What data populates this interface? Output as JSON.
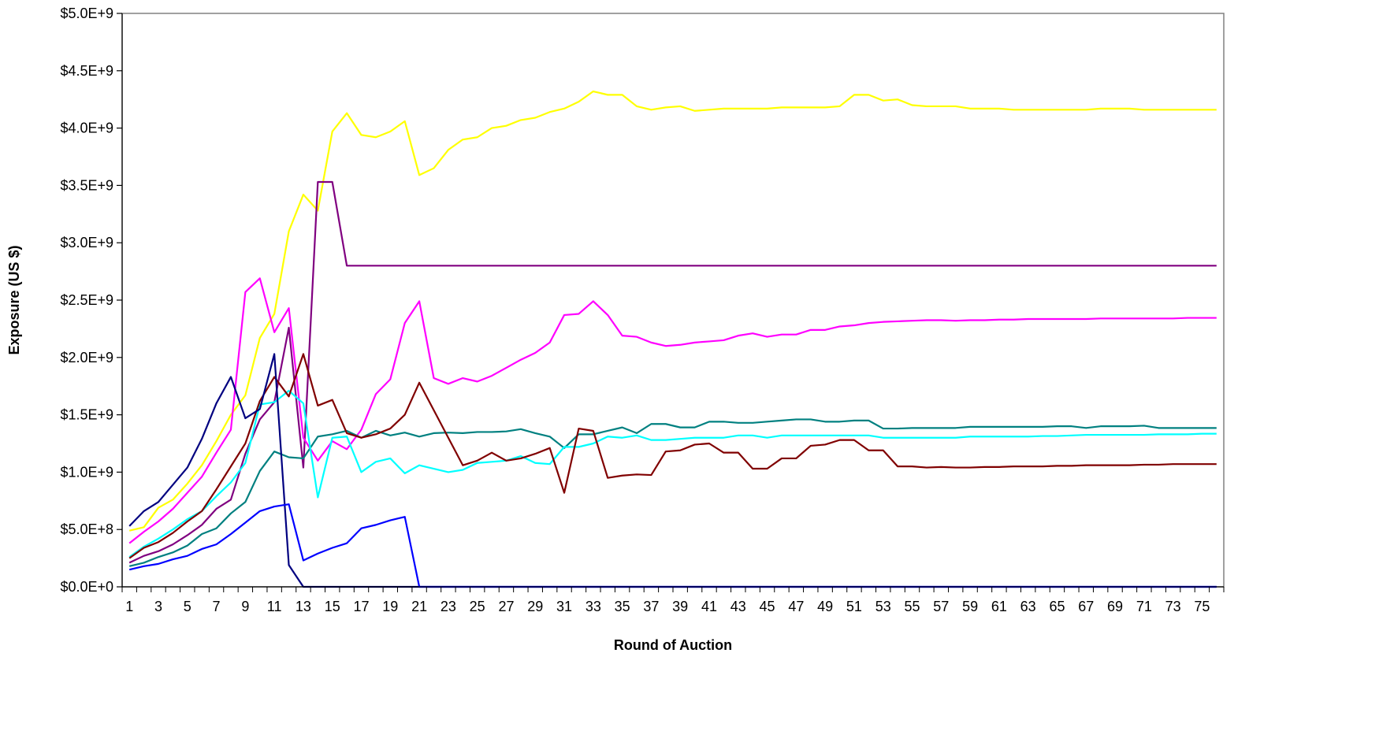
{
  "chart_data": {
    "type": "line",
    "title": "",
    "xlabel": "Round of Auction",
    "ylabel": "Exposure (US $)",
    "x": [
      1,
      2,
      3,
      4,
      5,
      6,
      7,
      8,
      9,
      10,
      11,
      12,
      13,
      14,
      15,
      16,
      17,
      18,
      19,
      20,
      21,
      22,
      23,
      24,
      25,
      26,
      27,
      28,
      29,
      30,
      31,
      32,
      33,
      34,
      35,
      36,
      37,
      38,
      39,
      40,
      41,
      42,
      43,
      44,
      45,
      46,
      47,
      48,
      49,
      50,
      51,
      52,
      53,
      54,
      55,
      56,
      57,
      58,
      59,
      60,
      61,
      62,
      63,
      64,
      65,
      66,
      67,
      68,
      69,
      70,
      71,
      72,
      73,
      74,
      75,
      76
    ],
    "x_tick_labels": [
      "1",
      "3",
      "5",
      "7",
      "9",
      "11",
      "13",
      "15",
      "17",
      "19",
      "21",
      "23",
      "25",
      "27",
      "29",
      "31",
      "33",
      "35",
      "37",
      "39",
      "41",
      "43",
      "45",
      "47",
      "49",
      "51",
      "53",
      "55",
      "57",
      "59",
      "61",
      "63",
      "65",
      "67",
      "69",
      "71",
      "73",
      "75"
    ],
    "ylim": [
      0,
      5000000000
    ],
    "y_tick_values": [
      0,
      500000000,
      1000000000,
      1500000000,
      2000000000,
      2500000000,
      3000000000,
      3500000000,
      4000000000,
      4500000000,
      5000000000
    ],
    "y_tick_labels": [
      "$0.0E+0",
      "$5.0E+8",
      "$1.0E+9",
      "$1.5E+9",
      "$2.0E+9",
      "$2.5E+9",
      "$3.0E+9",
      "$3.5E+9",
      "$4.0E+9",
      "$4.5E+9",
      "$5.0E+9"
    ],
    "grid": false,
    "legend": "none",
    "series": [
      {
        "color": "#ffff00",
        "values": [
          490000000.0,
          520000000.0,
          690000000.0,
          760000000.0,
          900000000.0,
          1060000000.0,
          1270000000.0,
          1500000000.0,
          1670000000.0,
          2170000000.0,
          2380000000.0,
          3100000000.0,
          3420000000.0,
          3280000000.0,
          3970000000.0,
          4130000000.0,
          3940000000.0,
          3920000000.0,
          3970000000.0,
          4060000000.0,
          3590000000.0,
          3650000000.0,
          3810000000.0,
          3900000000.0,
          3920000000.0,
          4000000000.0,
          4020000000.0,
          4070000000.0,
          4090000000.0,
          4140000000.0,
          4170000000.0,
          4230000000.0,
          4320000000.0,
          4290000000.0,
          4290000000.0,
          4190000000.0,
          4160000000.0,
          4180000000.0,
          4190000000.0,
          4150000000.0,
          4160000000.0,
          4170000000.0,
          4170000000.0,
          4170000000.0,
          4170000000.0,
          4180000000.0,
          4180000000.0,
          4180000000.0,
          4180000000.0,
          4190000000.0,
          4290000000.0,
          4290000000.0,
          4240000000.0,
          4250000000.0,
          4200000000.0,
          4190000000.0,
          4190000000.0,
          4190000000.0,
          4170000000.0,
          4170000000.0,
          4170000000.0,
          4160000000.0,
          4160000000.0,
          4160000000.0,
          4160000000.0,
          4160000000.0,
          4160000000.0,
          4170000000.0,
          4170000000.0,
          4170000000.0,
          4160000000.0,
          4160000000.0,
          4160000000.0,
          4160000000.0,
          4160000000.0,
          4160000000.0
        ]
      },
      {
        "color": "#800080",
        "values": [
          210000000.0,
          270000000.0,
          310000000.0,
          370000000.0,
          450000000.0,
          540000000.0,
          680000000.0,
          760000000.0,
          1160000000.0,
          1460000000.0,
          1610000000.0,
          2260000000.0,
          1040000000.0,
          3530000000.0,
          3530000000.0,
          2800000000.0,
          2800000000.0,
          2800000000.0,
          2800000000.0,
          2800000000.0,
          2800000000.0,
          2800000000.0,
          2800000000.0,
          2800000000.0,
          2800000000.0,
          2800000000.0,
          2800000000.0,
          2800000000.0,
          2800000000.0,
          2800000000.0,
          2800000000.0,
          2800000000.0,
          2800000000.0,
          2800000000.0,
          2800000000.0,
          2800000000.0,
          2800000000.0,
          2800000000.0,
          2800000000.0,
          2800000000.0,
          2800000000.0,
          2800000000.0,
          2800000000.0,
          2800000000.0,
          2800000000.0,
          2800000000.0,
          2800000000.0,
          2800000000.0,
          2800000000.0,
          2800000000.0,
          2800000000.0,
          2800000000.0,
          2800000000.0,
          2800000000.0,
          2800000000.0,
          2800000000.0,
          2800000000.0,
          2800000000.0,
          2800000000.0,
          2800000000.0,
          2800000000.0,
          2800000000.0,
          2800000000.0,
          2800000000.0,
          2800000000.0,
          2800000000.0,
          2800000000.0,
          2800000000.0,
          2800000000.0,
          2800000000.0,
          2800000000.0,
          2800000000.0,
          2800000000.0,
          2800000000.0,
          2800000000.0,
          2800000000.0
        ]
      },
      {
        "color": "#ff00ff",
        "values": [
          380000000.0,
          480000000.0,
          570000000.0,
          680000000.0,
          820000000.0,
          960000000.0,
          1170000000.0,
          1370000000.0,
          2570000000.0,
          2690000000.0,
          2220000000.0,
          2430000000.0,
          1300000000.0,
          1100000000.0,
          1270000000.0,
          1200000000.0,
          1370000000.0,
          1680000000.0,
          1810000000.0,
          2300000000.0,
          2490000000.0,
          1820000000.0,
          1770000000.0,
          1820000000.0,
          1790000000.0,
          1840000000.0,
          1910000000.0,
          1980000000.0,
          2040000000.0,
          2130000000.0,
          2370000000.0,
          2380000000.0,
          2490000000.0,
          2370000000.0,
          2190000000.0,
          2180000000.0,
          2130000000.0,
          2100000000.0,
          2110000000.0,
          2130000000.0,
          2140000000.0,
          2150000000.0,
          2190000000.0,
          2210000000.0,
          2180000000.0,
          2200000000.0,
          2200000000.0,
          2240000000.0,
          2240000000.0,
          2270000000.0,
          2280000000.0,
          2300000000.0,
          2310000000.0,
          2315000000.0,
          2320000000.0,
          2325000000.0,
          2325000000.0,
          2320000000.0,
          2325000000.0,
          2325000000.0,
          2330000000.0,
          2330000000.0,
          2335000000.0,
          2335000000.0,
          2335000000.0,
          2335000000.0,
          2335000000.0,
          2340000000.0,
          2340000000.0,
          2340000000.0,
          2340000000.0,
          2340000000.0,
          2340000000.0,
          2345000000.0,
          2345000000.0,
          2345000000.0
        ]
      },
      {
        "color": "#008080",
        "values": [
          180000000.0,
          210000000.0,
          260000000.0,
          300000000.0,
          360000000.0,
          460000000.0,
          510000000.0,
          640000000.0,
          740000000.0,
          1010000000.0,
          1180000000.0,
          1130000000.0,
          1120000000.0,
          1310000000.0,
          1330000000.0,
          1360000000.0,
          1300000000.0,
          1360000000.0,
          1320000000.0,
          1345000000.0,
          1310000000.0,
          1340000000.0,
          1345000000.0,
          1340000000.0,
          1350000000.0,
          1350000000.0,
          1355000000.0,
          1375000000.0,
          1340000000.0,
          1310000000.0,
          1210000000.0,
          1330000000.0,
          1330000000.0,
          1360000000.0,
          1390000000.0,
          1340000000.0,
          1420000000.0,
          1420000000.0,
          1390000000.0,
          1390000000.0,
          1440000000.0,
          1440000000.0,
          1430000000.0,
          1430000000.0,
          1440000000.0,
          1450000000.0,
          1460000000.0,
          1460000000.0,
          1440000000.0,
          1440000000.0,
          1450000000.0,
          1450000000.0,
          1380000000.0,
          1380000000.0,
          1385000000.0,
          1385000000.0,
          1385000000.0,
          1385000000.0,
          1395000000.0,
          1395000000.0,
          1395000000.0,
          1395000000.0,
          1395000000.0,
          1395000000.0,
          1400000000.0,
          1400000000.0,
          1385000000.0,
          1400000000.0,
          1400000000.0,
          1400000000.0,
          1405000000.0,
          1385000000.0,
          1385000000.0,
          1385000000.0,
          1385000000.0,
          1385000000.0
        ]
      },
      {
        "color": "#00ffff",
        "values": [
          260000000.0,
          350000000.0,
          420000000.0,
          500000000.0,
          590000000.0,
          660000000.0,
          790000000.0,
          910000000.0,
          1080000000.0,
          1590000000.0,
          1610000000.0,
          1710000000.0,
          1600000000.0,
          780000000.0,
          1300000000.0,
          1310000000.0,
          1000000000.0,
          1090000000.0,
          1120000000.0,
          990000000.0,
          1060000000.0,
          1030000000.0,
          1000000000.0,
          1020000000.0,
          1080000000.0,
          1090000000.0,
          1100000000.0,
          1140000000.0,
          1080000000.0,
          1070000000.0,
          1220000000.0,
          1220000000.0,
          1250000000.0,
          1310000000.0,
          1300000000.0,
          1320000000.0,
          1280000000.0,
          1280000000.0,
          1290000000.0,
          1300000000.0,
          1300000000.0,
          1300000000.0,
          1320000000.0,
          1320000000.0,
          1300000000.0,
          1320000000.0,
          1320000000.0,
          1320000000.0,
          1320000000.0,
          1320000000.0,
          1320000000.0,
          1320000000.0,
          1300000000.0,
          1300000000.0,
          1300000000.0,
          1300000000.0,
          1300000000.0,
          1300000000.0,
          1310000000.0,
          1310000000.0,
          1310000000.0,
          1310000000.0,
          1310000000.0,
          1315000000.0,
          1315000000.0,
          1320000000.0,
          1325000000.0,
          1325000000.0,
          1325000000.0,
          1325000000.0,
          1325000000.0,
          1330000000.0,
          1330000000.0,
          1330000000.0,
          1335000000.0,
          1335000000.0
        ]
      },
      {
        "color": "#800000",
        "values": [
          250000000.0,
          340000000.0,
          390000000.0,
          470000000.0,
          570000000.0,
          660000000.0,
          850000000.0,
          1050000000.0,
          1250000000.0,
          1620000000.0,
          1830000000.0,
          1660000000.0,
          2030000000.0,
          1580000000.0,
          1630000000.0,
          1340000000.0,
          1300000000.0,
          1330000000.0,
          1380000000.0,
          1500000000.0,
          1780000000.0,
          1540000000.0,
          1300000000.0,
          1060000000.0,
          1100000000.0,
          1170000000.0,
          1100000000.0,
          1120000000.0,
          1160000000.0,
          1210000000.0,
          820000000.0,
          1380000000.0,
          1360000000.0,
          950000000.0,
          970000000.0,
          980000000.0,
          975000000.0,
          1180000000.0,
          1190000000.0,
          1240000000.0,
          1250000000.0,
          1170000000.0,
          1170000000.0,
          1030000000.0,
          1030000000.0,
          1120000000.0,
          1120000000.0,
          1230000000.0,
          1240000000.0,
          1280000000.0,
          1280000000.0,
          1190000000.0,
          1190000000.0,
          1050000000.0,
          1050000000.0,
          1040000000.0,
          1045000000.0,
          1040000000.0,
          1040000000.0,
          1045000000.0,
          1045000000.0,
          1050000000.0,
          1050000000.0,
          1050000000.0,
          1055000000.0,
          1055000000.0,
          1060000000.0,
          1060000000.0,
          1060000000.0,
          1060000000.0,
          1065000000.0,
          1065000000.0,
          1070000000.0,
          1070000000.0,
          1070000000.0,
          1070000000.0
        ]
      },
      {
        "color": "#000080",
        "values": [
          530000000.0,
          660000000.0,
          740000000.0,
          890000000.0,
          1040000000.0,
          1290000000.0,
          1600000000.0,
          1830000000.0,
          1470000000.0,
          1550000000.0,
          2030000000.0,
          190000000.0,
          0,
          0,
          0,
          0,
          0,
          0,
          0,
          0,
          0,
          0,
          0,
          0,
          0,
          0,
          0,
          0,
          0,
          0,
          0,
          0,
          0,
          0,
          0,
          0,
          0,
          0,
          0,
          0,
          0,
          0,
          0,
          0,
          0,
          0,
          0,
          0,
          0,
          0,
          0,
          0,
          0,
          0,
          0,
          0,
          0,
          0,
          0,
          0,
          0,
          0,
          0,
          0,
          0,
          0,
          0,
          0,
          0,
          0,
          0,
          0,
          0,
          0,
          0,
          0
        ]
      },
      {
        "color": "#0000ff",
        "values": [
          150000000.0,
          180000000.0,
          200000000.0,
          240000000.0,
          270000000.0,
          330000000.0,
          370000000.0,
          460000000.0,
          560000000.0,
          660000000.0,
          700000000.0,
          720000000.0,
          230000000.0,
          290000000.0,
          340000000.0,
          380000000.0,
          510000000.0,
          540000000.0,
          580000000.0,
          610000000.0,
          0,
          0,
          0,
          0,
          0,
          0,
          0,
          0,
          0,
          0,
          0,
          0,
          0,
          0,
          0,
          0,
          0,
          0,
          0,
          0,
          0,
          0,
          0,
          0,
          0,
          0,
          0,
          0,
          0,
          0,
          0,
          0,
          0,
          0,
          0,
          0,
          0,
          0,
          0,
          0,
          0,
          0,
          0,
          0,
          0,
          0,
          0,
          0,
          0,
          0,
          0,
          0,
          0,
          0,
          0,
          0
        ]
      }
    ]
  }
}
